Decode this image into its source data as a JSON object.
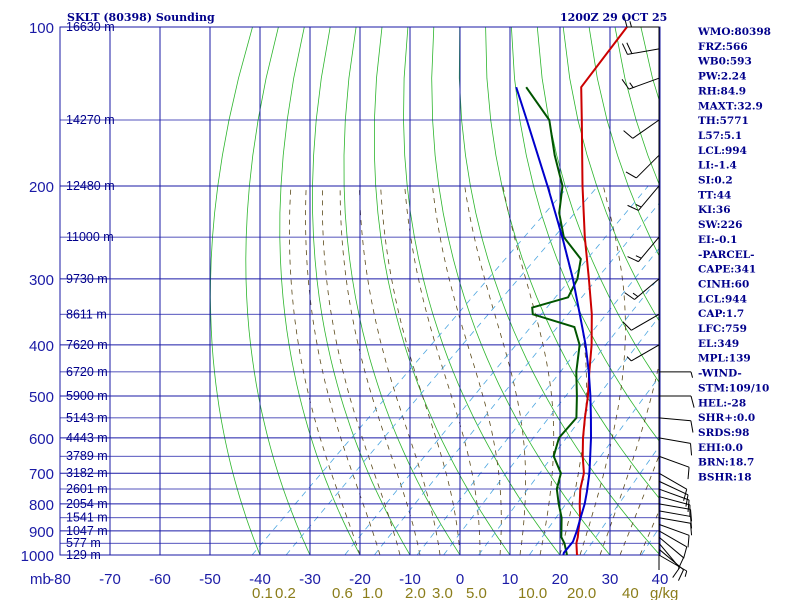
{
  "chart_data": {
    "type": "skew-t",
    "title": "SKLT (80398) Sounding",
    "valid_time": "1200Z 29 OCT 25",
    "pressure_axis_label": "mb",
    "pressure_ticks": [
      100,
      200,
      300,
      400,
      500,
      600,
      700,
      800,
      900,
      1000
    ],
    "temperature_ticks": [
      -80,
      -70,
      -60,
      -50,
      -40,
      -30,
      -20,
      -10,
      0,
      10,
      20,
      30,
      40
    ],
    "temperature_unit": "C",
    "mixing_ratio_labels": [
      "0.1",
      "0.2",
      "0.6",
      "1.0",
      "2.0",
      "3.0",
      "5.0",
      "10.0",
      "20.0",
      "40",
      "g/kg"
    ],
    "mixing_ratio_values": [
      0.1,
      0.2,
      0.6,
      1.0,
      2.0,
      3.0,
      5.0,
      10.0,
      20.0,
      40.0
    ],
    "height_labels": [
      {
        "p": 100,
        "label": "16630 m"
      },
      {
        "p": 150,
        "label": "14270 m"
      },
      {
        "p": 200,
        "label": "12480 m"
      },
      {
        "p": 250,
        "label": "11000 m"
      },
      {
        "p": 300,
        "label": "9730 m"
      },
      {
        "p": 350,
        "label": "8611 m"
      },
      {
        "p": 400,
        "label": "7620 m"
      },
      {
        "p": 450,
        "label": "6720 m"
      },
      {
        "p": 500,
        "label": "5900 m"
      },
      {
        "p": 550,
        "label": "5143 m"
      },
      {
        "p": 600,
        "label": "4443 m"
      },
      {
        "p": 650,
        "label": "3789 m"
      },
      {
        "p": 700,
        "label": "3182 m"
      },
      {
        "p": 750,
        "label": "2601 m"
      },
      {
        "p": 800,
        "label": "2054 m"
      },
      {
        "p": 850,
        "label": "1541 m"
      },
      {
        "p": 900,
        "label": "1047 m"
      },
      {
        "p": 950,
        "label": "577 m"
      },
      {
        "p": 1000,
        "label": "129 m"
      }
    ],
    "series": [
      {
        "name": "Temperature",
        "color": "#cc0000",
        "points": [
          {
            "p": 1009,
            "t": 25.0
          },
          {
            "p": 1000,
            "t": 23.4
          },
          {
            "p": 950,
            "t": 20.8
          },
          {
            "p": 925,
            "t": 19.8
          },
          {
            "p": 900,
            "t": 18.6
          },
          {
            "p": 850,
            "t": 16.2
          },
          {
            "p": 800,
            "t": 13.2
          },
          {
            "p": 750,
            "t": 10.2
          },
          {
            "p": 700,
            "t": 7.6
          },
          {
            "p": 650,
            "t": 3.8
          },
          {
            "p": 600,
            "t": 0.0
          },
          {
            "p": 550,
            "t": -3.8
          },
          {
            "p": 500,
            "t": -7.8
          },
          {
            "p": 450,
            "t": -12.6
          },
          {
            "p": 400,
            "t": -17.8
          },
          {
            "p": 350,
            "t": -24.2
          },
          {
            "p": 300,
            "t": -32.2
          },
          {
            "p": 250,
            "t": -41.8
          },
          {
            "p": 200,
            "t": -53.0
          },
          {
            "p": 150,
            "t": -67.0
          },
          {
            "p": 130,
            "t": -74.0
          },
          {
            "p": 100,
            "t": -77.5
          }
        ]
      },
      {
        "name": "Dewpoint",
        "color": "#005500",
        "points": [
          {
            "p": 1009,
            "t": 21.0
          },
          {
            "p": 1000,
            "t": 21.4
          },
          {
            "p": 950,
            "t": 18.4
          },
          {
            "p": 925,
            "t": 16.5
          },
          {
            "p": 900,
            "t": 15.2
          },
          {
            "p": 850,
            "t": 12.5
          },
          {
            "p": 800,
            "t": 9.0
          },
          {
            "p": 750,
            "t": 5.5
          },
          {
            "p": 700,
            "t": 3.0
          },
          {
            "p": 650,
            "t": -2.0
          },
          {
            "p": 600,
            "t": -4.8
          },
          {
            "p": 550,
            "t": -5.5
          },
          {
            "p": 500,
            "t": -10.0
          },
          {
            "p": 450,
            "t": -15.2
          },
          {
            "p": 400,
            "t": -20.2
          },
          {
            "p": 370,
            "t": -25.0
          },
          {
            "p": 350,
            "t": -36.0
          },
          {
            "p": 340,
            "t": -37.5
          },
          {
            "p": 325,
            "t": -32.5
          },
          {
            "p": 300,
            "t": -34.5
          },
          {
            "p": 275,
            "t": -38.0
          },
          {
            "p": 250,
            "t": -46.0
          },
          {
            "p": 225,
            "t": -52.0
          },
          {
            "p": 200,
            "t": -57.0
          },
          {
            "p": 175,
            "t": -65.0
          },
          {
            "p": 150,
            "t": -73.5
          },
          {
            "p": 130,
            "t": -85.0
          }
        ]
      },
      {
        "name": "Parcel",
        "color": "#0000cc",
        "points": [
          {
            "p": 1009,
            "t": 21.0
          },
          {
            "p": 990,
            "t": 20.3
          },
          {
            "p": 944,
            "t": 19.8
          },
          {
            "p": 900,
            "t": 18.3
          },
          {
            "p": 850,
            "t": 16.3
          },
          {
            "p": 800,
            "t": 14.2
          },
          {
            "p": 759,
            "t": 12.1
          },
          {
            "p": 700,
            "t": 8.7
          },
          {
            "p": 650,
            "t": 5.3
          },
          {
            "p": 600,
            "t": 1.6
          },
          {
            "p": 550,
            "t": -2.6
          },
          {
            "p": 500,
            "t": -7.3
          },
          {
            "p": 450,
            "t": -12.7
          },
          {
            "p": 400,
            "t": -19.0
          },
          {
            "p": 350,
            "t": -26.6
          },
          {
            "p": 300,
            "t": -35.4
          },
          {
            "p": 250,
            "t": -46.3
          },
          {
            "p": 200,
            "t": -60.0
          },
          {
            "p": 150,
            "t": -78.0
          },
          {
            "p": 130,
            "t": -87.0
          }
        ]
      }
    ],
    "wind_profile": [
      {
        "p": 1000,
        "dir": 120,
        "spd": 5
      },
      {
        "p": 975,
        "dir": 130,
        "spd": 8
      },
      {
        "p": 950,
        "dir": 140,
        "spd": 10
      },
      {
        "p": 925,
        "dir": 130,
        "spd": 10
      },
      {
        "p": 900,
        "dir": 120,
        "spd": 10
      },
      {
        "p": 875,
        "dir": 110,
        "spd": 10
      },
      {
        "p": 850,
        "dir": 100,
        "spd": 10
      },
      {
        "p": 825,
        "dir": 100,
        "spd": 10
      },
      {
        "p": 800,
        "dir": 100,
        "spd": 10
      },
      {
        "p": 775,
        "dir": 105,
        "spd": 10
      },
      {
        "p": 750,
        "dir": 110,
        "spd": 10
      },
      {
        "p": 725,
        "dir": 115,
        "spd": 10
      },
      {
        "p": 700,
        "dir": 120,
        "spd": 10
      },
      {
        "p": 650,
        "dir": 110,
        "spd": 10
      },
      {
        "p": 600,
        "dir": 100,
        "spd": 10
      },
      {
        "p": 550,
        "dir": 95,
        "spd": 10
      },
      {
        "p": 500,
        "dir": 90,
        "spd": 10
      },
      {
        "p": 450,
        "dir": 90,
        "spd": 5
      },
      {
        "p": 400,
        "dir": 240,
        "spd": 5
      },
      {
        "p": 350,
        "dir": 240,
        "spd": 10
      },
      {
        "p": 300,
        "dir": 230,
        "spd": 15
      },
      {
        "p": 250,
        "dir": 220,
        "spd": 15
      },
      {
        "p": 200,
        "dir": 220,
        "spd": 15
      },
      {
        "p": 175,
        "dir": 225,
        "spd": 10
      },
      {
        "p": 150,
        "dir": 235,
        "spd": 10
      },
      {
        "p": 125,
        "dir": 250,
        "spd": 15
      },
      {
        "p": 110,
        "dir": 260,
        "spd": 20
      },
      {
        "p": 100,
        "dir": 270,
        "spd": 15
      }
    ],
    "indices": [
      "WMO:80398",
      "FRZ:566",
      "WB0:593",
      "PW:2.24",
      "RH:84.9",
      "MAXT:32.9",
      "TH:5771",
      "L57:5.1",
      "LCL:994",
      "LI:-1.4",
      "SI:0.2",
      "TT:44",
      "KI:36",
      "SW:226",
      "EI:-0.1",
      "-PARCEL-",
      "CAPE:341",
      "CINH:60",
      "LCL:944",
      "CAP:1.7",
      "LFC:759",
      "EL:349",
      "MPL:139",
      "-WIND-",
      "STM:109/10",
      "HEL:-28",
      "SHR+:0.0",
      "SRDS:98",
      "EHI:0.0",
      "BRN:18.7",
      "BSHR:18"
    ]
  }
}
